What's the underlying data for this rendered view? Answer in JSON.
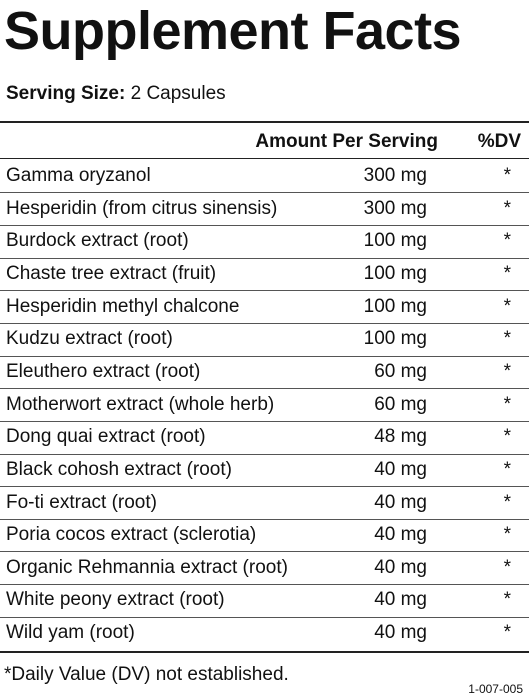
{
  "title": "Supplement Facts",
  "serving_size": {
    "label": "Serving Size:",
    "value": "2 Capsules"
  },
  "table": {
    "header": [
      "Amount Per Serving",
      "%DV"
    ],
    "rows": [
      [
        "Gamma oryzanol",
        "300 mg",
        "*"
      ],
      [
        "Hesperidin (from citrus sinensis)",
        "300 mg",
        "*"
      ],
      [
        "Burdock extract (root)",
        "100 mg",
        "*"
      ],
      [
        "Chaste tree extract (fruit)",
        "100 mg",
        "*"
      ],
      [
        "Hesperidin methyl chalcone",
        "100 mg",
        "*"
      ],
      [
        "Kudzu extract (root)",
        "100 mg",
        "*"
      ],
      [
        "Eleuthero extract (root)",
        "60 mg",
        "*"
      ],
      [
        "Motherwort extract (whole herb)",
        "60 mg",
        "*"
      ],
      [
        "Dong quai extract (root)",
        "48 mg",
        "*"
      ],
      [
        "Black cohosh extract (root)",
        "40 mg",
        "*"
      ],
      [
        "Fo-ti extract (root)",
        "40 mg",
        "*"
      ],
      [
        "Poria cocos extract (sclerotia)",
        "40 mg",
        "*"
      ],
      [
        "Organic Rehmannia extract (root)",
        "40 mg",
        "*"
      ],
      [
        "White peony extract (root)",
        "40 mg",
        "*"
      ],
      [
        "Wild yam (root)",
        "40 mg",
        "*"
      ]
    ]
  },
  "footnote": "*Daily Value (DV) not established.",
  "code": "1-007-005"
}
